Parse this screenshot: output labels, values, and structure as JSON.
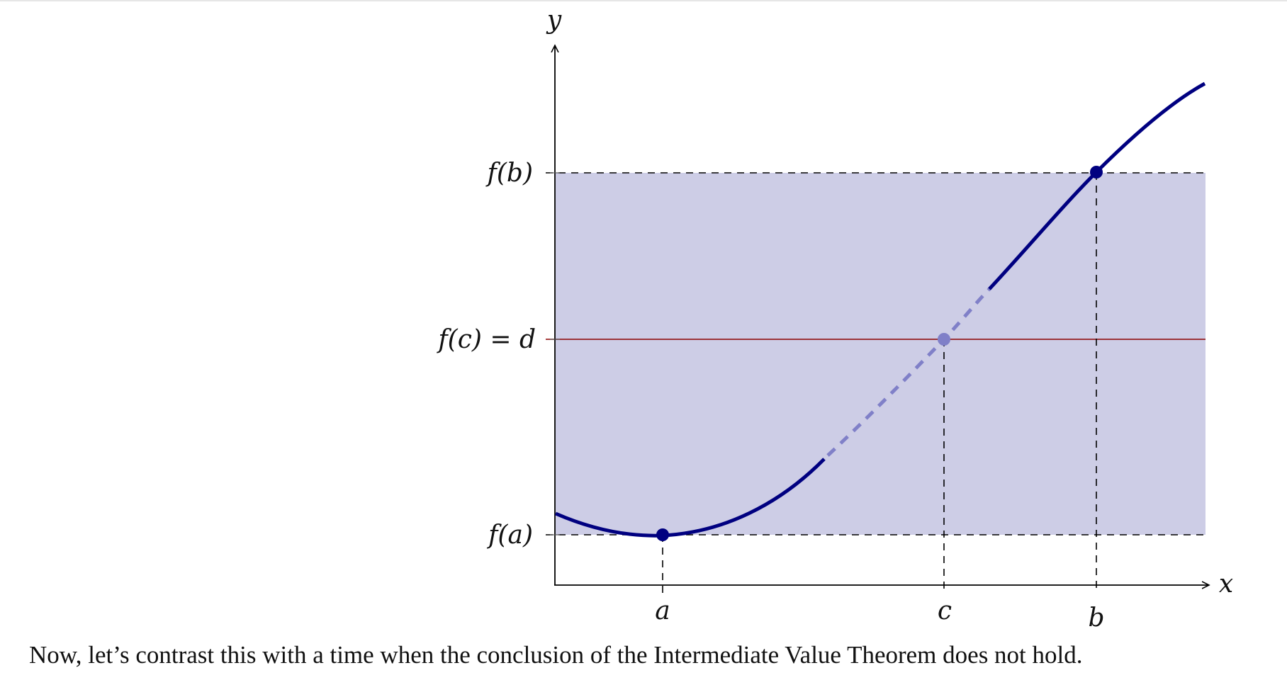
{
  "figure": {
    "axis_labels": {
      "x": "x",
      "y": "y"
    },
    "y_tick_labels": {
      "fb": "f(b)",
      "fc": "f(c) = d",
      "fa": "f(a)"
    },
    "x_tick_labels": {
      "a": "a",
      "c": "c",
      "b": "b"
    },
    "colors": {
      "curve": "#000080",
      "curve_hidden": "#8080c8",
      "band_fill": "#cdcde6",
      "level_line": "#8b0000",
      "guide_dash": "#000000",
      "axis": "#000000"
    }
  },
  "caption": "Now, let’s contrast this with a time when the conclusion of the Intermediate Value Theorem does not hold."
}
